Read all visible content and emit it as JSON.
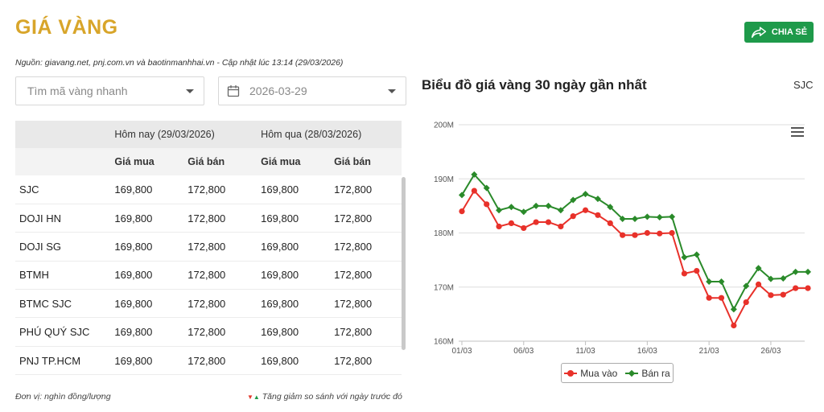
{
  "header": {
    "title": "GIÁ VÀNG",
    "share_label": "CHIA SẺ"
  },
  "source_line": "Nguồn: giavang.net, pnj.com.vn và baotinmanhhai.vn - Cập nhật lúc 13:14 (29/03/2026)",
  "search": {
    "placeholder": "Tìm mã vàng nhanh"
  },
  "date_picker": {
    "value": "2026-03-29"
  },
  "table": {
    "group_headers": [
      "Hôm nay (29/03/2026)",
      "Hôm qua (28/03/2026)"
    ],
    "sub_headers": [
      "Giá mua",
      "Giá bán",
      "Giá mua",
      "Giá bán"
    ],
    "rows": [
      {
        "name": "SJC",
        "today_buy": "169,800",
        "today_sell": "172,800",
        "yday_buy": "169,800",
        "yday_sell": "172,800"
      },
      {
        "name": "DOJI HN",
        "today_buy": "169,800",
        "today_sell": "172,800",
        "yday_buy": "169,800",
        "yday_sell": "172,800"
      },
      {
        "name": "DOJI SG",
        "today_buy": "169,800",
        "today_sell": "172,800",
        "yday_buy": "169,800",
        "yday_sell": "172,800"
      },
      {
        "name": "BTMH",
        "today_buy": "169,800",
        "today_sell": "172,800",
        "yday_buy": "169,800",
        "yday_sell": "172,800"
      },
      {
        "name": "BTMC SJC",
        "today_buy": "169,800",
        "today_sell": "172,800",
        "yday_buy": "169,800",
        "yday_sell": "172,800"
      },
      {
        "name": "PHÚ QUÝ SJC",
        "today_buy": "169,800",
        "today_sell": "172,800",
        "yday_buy": "169,800",
        "yday_sell": "172,800"
      },
      {
        "name": "PNJ TP.HCM",
        "today_buy": "169,800",
        "today_sell": "172,800",
        "yday_buy": "169,800",
        "yday_sell": "172,800"
      }
    ]
  },
  "footer": {
    "unit": "Đơn vị: nghìn đồng/lượng",
    "change_note": "Tăng giảm so sánh với ngày trước đó"
  },
  "chart_header": {
    "title": "Biểu đồ giá vàng 30 ngày gần nhất",
    "code": "SJC"
  },
  "chart_data": {
    "type": "line",
    "title": "Biểu đồ giá vàng 30 ngày gần nhất",
    "x": [
      "01/03",
      "02/03",
      "03/03",
      "04/03",
      "05/03",
      "06/03",
      "07/03",
      "08/03",
      "09/03",
      "10/03",
      "11/03",
      "12/03",
      "13/03",
      "14/03",
      "15/03",
      "16/03",
      "17/03",
      "18/03",
      "19/03",
      "20/03",
      "21/03",
      "22/03",
      "23/03",
      "24/03",
      "25/03",
      "26/03",
      "27/03",
      "28/03",
      "29/03"
    ],
    "x_tick_labels": [
      "01/03",
      "06/03",
      "11/03",
      "16/03",
      "21/03",
      "26/03"
    ],
    "y_tick_labels": [
      "160M",
      "170M",
      "180M",
      "190M",
      "200M"
    ],
    "ylim": [
      160,
      200
    ],
    "y_unit": "M",
    "grid": true,
    "legend_position": "bottom",
    "series": [
      {
        "name": "Mua vào",
        "color": "#e8312a",
        "values": [
          184.0,
          187.8,
          185.3,
          181.2,
          181.8,
          180.9,
          182.0,
          182.0,
          181.2,
          183.1,
          184.2,
          183.3,
          181.8,
          179.6,
          179.6,
          180.0,
          179.9,
          180.0,
          172.5,
          173.0,
          168.0,
          168.0,
          162.9,
          167.2,
          170.5,
          168.5,
          168.6,
          169.8,
          169.8
        ]
      },
      {
        "name": "Bán ra",
        "color": "#2a8a2a",
        "values": [
          187.0,
          190.8,
          188.3,
          184.2,
          184.8,
          183.9,
          185.0,
          185.0,
          184.2,
          186.1,
          187.2,
          186.3,
          184.8,
          182.6,
          182.6,
          183.0,
          182.9,
          183.0,
          175.5,
          176.0,
          171.0,
          171.0,
          165.9,
          170.2,
          173.5,
          171.5,
          171.6,
          172.8,
          172.8
        ]
      }
    ]
  }
}
